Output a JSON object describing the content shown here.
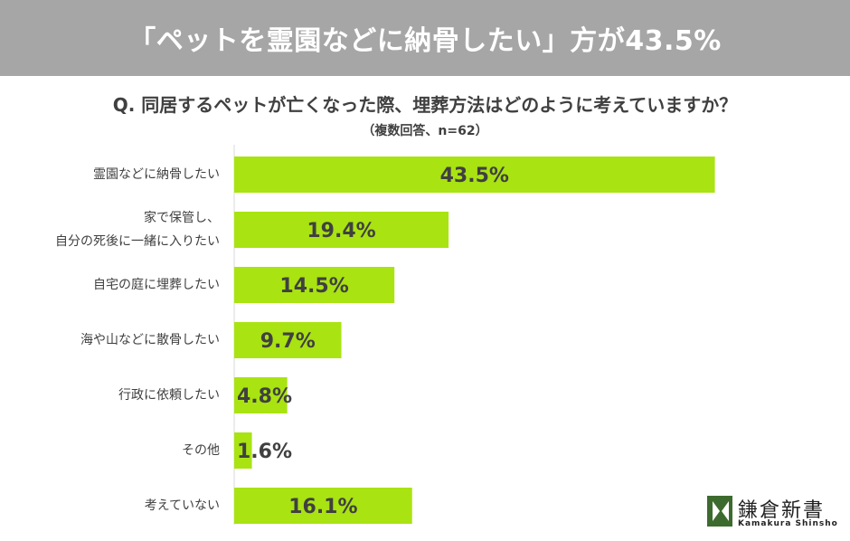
{
  "header": {
    "banner_title": "「ペットを霊園などに納骨したい」方が43.5%"
  },
  "question": {
    "text": "Q. 同居するペットが亡くなった際、埋葬方法はどのように考えていますか？",
    "note": "（複数回答、n=62）"
  },
  "chart_data": {
    "type": "bar",
    "orientation": "horizontal",
    "categories": [
      [
        "霊園などに納骨したい"
      ],
      [
        "家で保管し、",
        "自分の死後に一緒に入りたい"
      ],
      [
        "自宅の庭に埋葬したい"
      ],
      [
        "海や山などに散骨したい"
      ],
      [
        "行政に依頼したい"
      ],
      [
        "その他"
      ],
      [
        "考えていない"
      ]
    ],
    "values": [
      43.5,
      19.4,
      14.5,
      9.7,
      4.8,
      1.6,
      16.1
    ],
    "value_labels": [
      "43.5%",
      "19.4%",
      "14.5%",
      "9.7%",
      "4.8%",
      "1.6%",
      "16.1%"
    ],
    "xlim": [
      0,
      50
    ],
    "grid": false,
    "bar_color": "#a9e312",
    "label_color": "#404040"
  },
  "branding": {
    "name": "鎌倉新書",
    "sub": "Kamakura Shinsho",
    "mark_color": "#3d6b2f"
  }
}
